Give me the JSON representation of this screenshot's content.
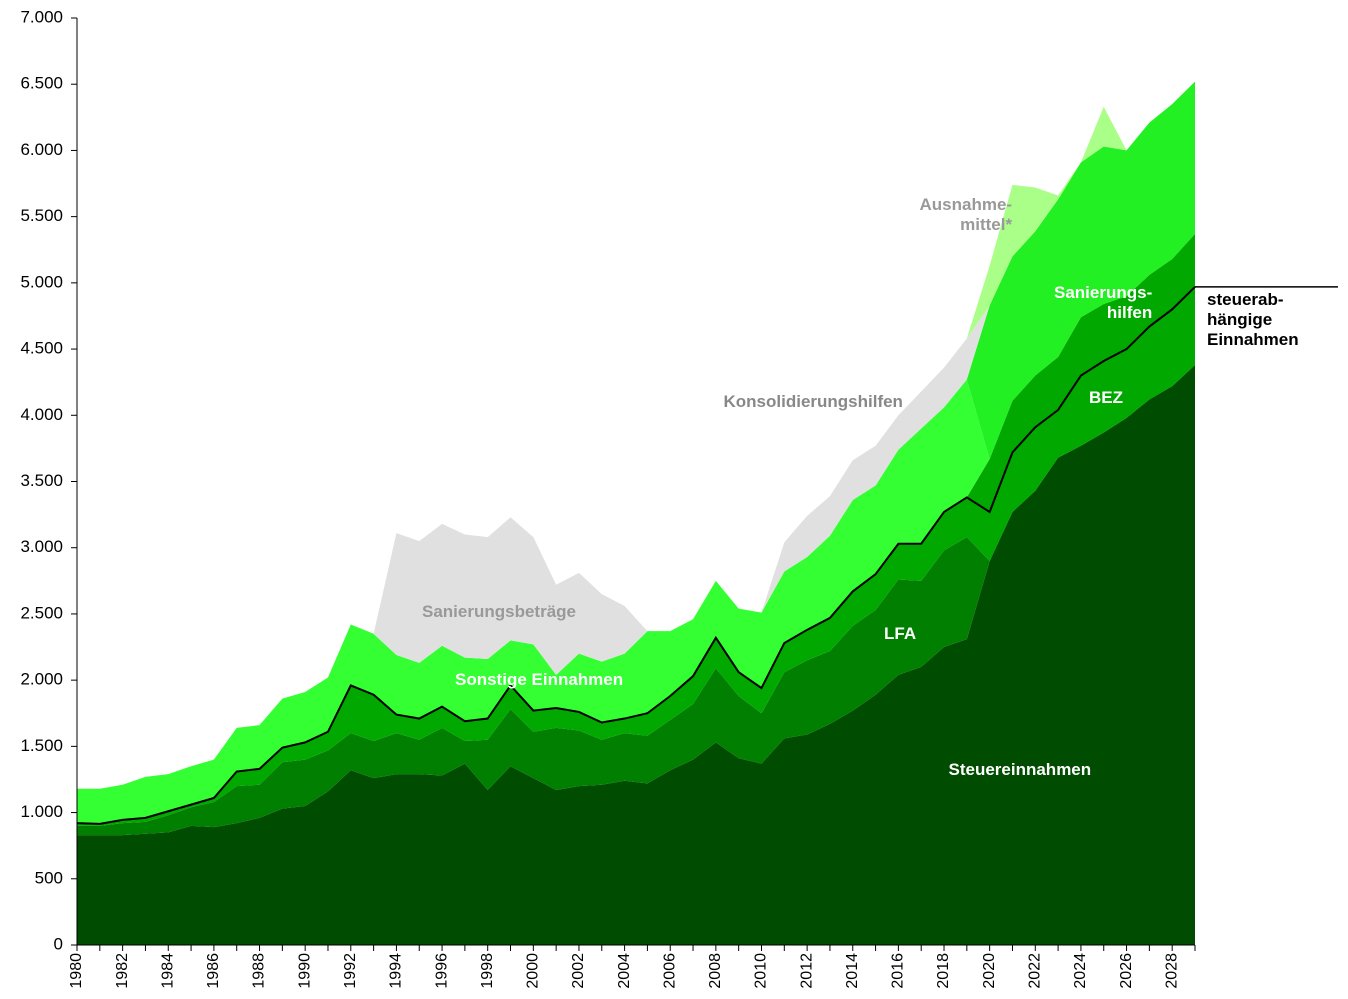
{
  "chart_data": {
    "type": "stacked_area",
    "x": [
      1980,
      1981,
      1982,
      1983,
      1984,
      1985,
      1986,
      1987,
      1988,
      1989,
      1990,
      1991,
      1992,
      1993,
      1994,
      1995,
      1996,
      1997,
      1998,
      1999,
      2000,
      2001,
      2002,
      2003,
      2004,
      2005,
      2006,
      2007,
      2008,
      2009,
      2010,
      2011,
      2012,
      2013,
      2014,
      2015,
      2016,
      2017,
      2018,
      2019,
      2020,
      2021,
      2022,
      2023,
      2024,
      2025,
      2026,
      2027,
      2028,
      2029
    ],
    "xlim": [
      1980,
      2029
    ],
    "xticks": [
      1980,
      1982,
      1984,
      1986,
      1988,
      1990,
      1992,
      1994,
      1996,
      1998,
      2000,
      2002,
      2004,
      2006,
      2008,
      2010,
      2012,
      2014,
      2016,
      2018,
      2020,
      2022,
      2024,
      2026,
      2028
    ],
    "ylim": [
      0,
      7000
    ],
    "yticks": [
      0,
      500,
      {
        "value": 1000,
        "label": "1.000"
      },
      {
        "value": 1500,
        "label": "1.500"
      },
      {
        "value": 2000,
        "label": "2.000"
      },
      {
        "value": 2500,
        "label": "2.500"
      },
      {
        "value": 3000,
        "label": "3.000"
      },
      {
        "value": 3500,
        "label": "3.500"
      },
      {
        "value": 4000,
        "label": "4.000"
      },
      {
        "value": 4500,
        "label": "4.500"
      },
      {
        "value": 5000,
        "label": "5.000"
      },
      {
        "value": 5500,
        "label": "5.500"
      },
      {
        "value": 6000,
        "label": "6.000"
      },
      {
        "value": 6500,
        "label": "6.500"
      },
      {
        "value": 7000,
        "label": "7.000"
      }
    ],
    "series": [
      {
        "name": "Steuereinnahmen",
        "color": "#004c00",
        "values": [
          830,
          830,
          830,
          840,
          850,
          900,
          890,
          920,
          960,
          1030,
          1050,
          1160,
          1320,
          1260,
          1290,
          1290,
          1280,
          1370,
          1170,
          1350,
          1260,
          1170,
          1200,
          1210,
          1240,
          1220,
          1320,
          1400,
          1530,
          1410,
          1370,
          1560,
          1590,
          1670,
          1770,
          1890,
          2040,
          2100,
          2250,
          2310,
          2900,
          3270,
          3430,
          3680,
          3770,
          3870,
          3980,
          4120,
          4220,
          4380
        ]
      },
      {
        "name": "LFA",
        "color": "#007f00",
        "values": [
          70,
          70,
          90,
          90,
          130,
          140,
          190,
          280,
          250,
          350,
          350,
          310,
          280,
          280,
          310,
          260,
          360,
          170,
          380,
          430,
          350,
          470,
          420,
          340,
          360,
          360,
          380,
          420,
          560,
          470,
          380,
          500,
          560,
          550,
          640,
          640,
          720,
          650,
          730,
          770,
          0,
          0,
          0,
          0,
          0,
          0,
          0,
          0,
          0,
          0
        ]
      },
      {
        "name": "BEZ",
        "color": "#00a800",
        "values": [
          20,
          15,
          25,
          30,
          30,
          20,
          30,
          110,
          120,
          110,
          130,
          140,
          360,
          350,
          140,
          160,
          160,
          150,
          160,
          180,
          160,
          150,
          140,
          130,
          110,
          170,
          180,
          210,
          230,
          180,
          190,
          220,
          230,
          250,
          260,
          270,
          270,
          280,
          290,
          300,
          770,
          840,
          870,
          760,
          970,
          970,
          920,
          940,
          960,
          990
        ]
      },
      {
        "name": "Sonstige Einnahmen",
        "color": "#33ff33",
        "values": [
          260,
          265,
          265,
          310,
          280,
          290,
          290,
          330,
          330,
          370,
          380,
          410,
          460,
          460,
          450,
          420,
          460,
          480,
          450,
          340,
          500,
          250,
          440,
          460,
          490,
          620,
          490,
          430,
          430,
          480,
          570,
          540,
          550,
          620,
          690,
          670,
          710,
          870,
          790,
          890,
          0,
          0,
          0,
          0,
          0,
          0,
          0,
          0,
          0,
          0
        ]
      },
      {
        "name": "Sanierungs-\nhilfen",
        "color": "#22f022",
        "values": [
          0,
          0,
          0,
          0,
          0,
          0,
          0,
          0,
          0,
          0,
          0,
          0,
          0,
          0,
          0,
          0,
          0,
          0,
          0,
          0,
          0,
          0,
          0,
          0,
          0,
          0,
          0,
          0,
          0,
          0,
          0,
          0,
          0,
          0,
          0,
          0,
          0,
          0,
          0,
          0,
          1160,
          1090,
          1090,
          1190,
          1170,
          1190,
          1100,
          1150,
          1170,
          1150
        ]
      },
      {
        "name": "Sanierungsbeträge",
        "color": "#e0e0e0",
        "values": [
          0,
          0,
          0,
          0,
          0,
          0,
          0,
          0,
          0,
          0,
          0,
          0,
          0,
          0,
          920,
          920,
          920,
          930,
          920,
          930,
          810,
          680,
          610,
          510,
          360,
          0,
          0,
          0,
          0,
          0,
          0,
          0,
          0,
          0,
          0,
          0,
          0,
          0,
          0,
          0,
          0,
          0,
          0,
          0,
          0,
          0,
          0,
          0,
          0,
          0
        ]
      },
      {
        "name": "Konsolidierungshilfen",
        "color": "#e0e0e0",
        "values": [
          0,
          0,
          0,
          0,
          0,
          0,
          0,
          0,
          0,
          0,
          0,
          0,
          0,
          0,
          0,
          0,
          0,
          0,
          0,
          0,
          0,
          0,
          0,
          0,
          0,
          0,
          0,
          0,
          0,
          0,
          0,
          220,
          310,
          300,
          300,
          300,
          260,
          280,
          300,
          310,
          0,
          0,
          0,
          0,
          0,
          0,
          0,
          0,
          0,
          0
        ]
      },
      {
        "name": "Ausnahme-\nmittel*",
        "color": "#aaff88",
        "values": [
          0,
          0,
          0,
          0,
          0,
          0,
          0,
          0,
          0,
          0,
          0,
          0,
          0,
          0,
          0,
          0,
          0,
          0,
          0,
          0,
          0,
          0,
          0,
          0,
          0,
          0,
          0,
          0,
          0,
          0,
          0,
          0,
          0,
          0,
          0,
          0,
          0,
          0,
          0,
          0,
          300,
          540,
          330,
          30,
          0,
          300,
          0,
          0,
          0,
          0
        ]
      }
    ],
    "line": {
      "name": "steuerab-\nhängige\nEinnahmen",
      "color": "#000000",
      "values": [
        920,
        915,
        945,
        960,
        1010,
        1060,
        1110,
        1310,
        1330,
        1490,
        1530,
        1610,
        1960,
        1890,
        1740,
        1710,
        1800,
        1690,
        1710,
        1960,
        1770,
        1790,
        1760,
        1680,
        1710,
        1750,
        1880,
        2030,
        2320,
        2060,
        1940,
        2280,
        2380,
        2470,
        2670,
        2800,
        3030,
        3030,
        3270,
        3380,
        3270,
        3720,
        3910,
        4040,
        4300,
        4410,
        4500,
        4670,
        4800,
        4970
      ]
    }
  }
}
